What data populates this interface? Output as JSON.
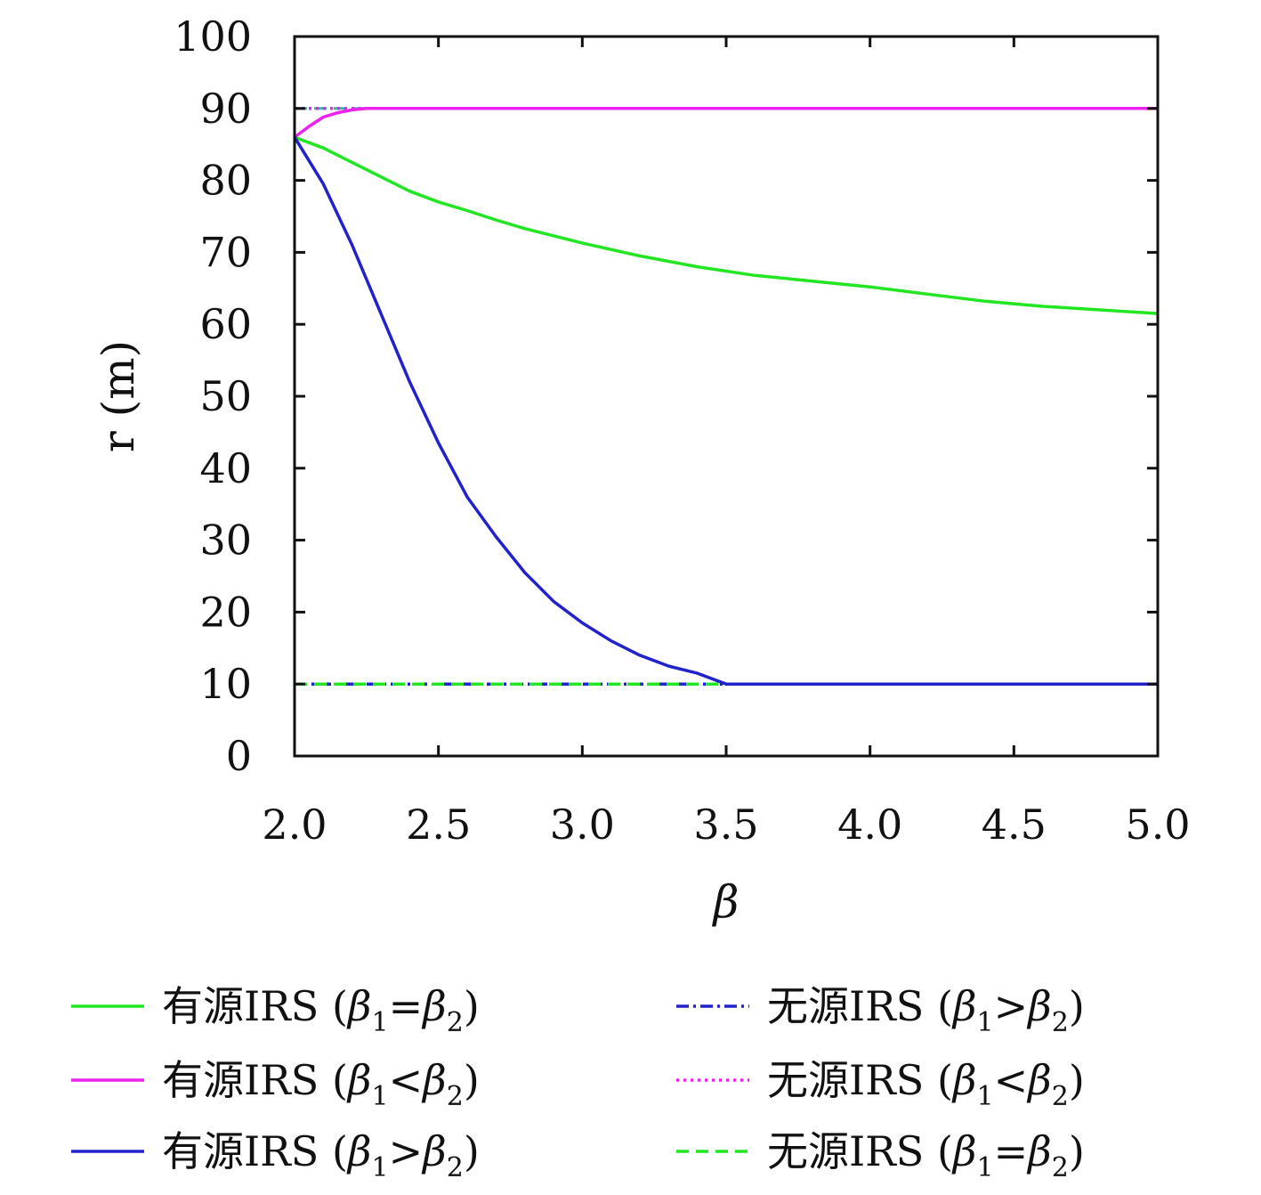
{
  "chart_data": {
    "type": "line",
    "xlabel": "β",
    "ylabel": "r (m)",
    "xlim": [
      2.0,
      5.0
    ],
    "ylim": [
      0,
      100
    ],
    "xticks": [
      "2.0",
      "2.5",
      "3.0",
      "3.5",
      "4.0",
      "4.5",
      "5.0"
    ],
    "yticks": [
      "0",
      "10",
      "20",
      "30",
      "40",
      "50",
      "60",
      "70",
      "80",
      "90",
      "100"
    ],
    "grid": false,
    "legend_position": "bottom",
    "series": [
      {
        "name": "有源IRS (β1=β2)",
        "color": "#22e622",
        "style": "solid",
        "x": [
          2.0,
          2.1,
          2.2,
          2.3,
          2.4,
          2.5,
          2.6,
          2.7,
          2.8,
          2.9,
          3.0,
          3.2,
          3.4,
          3.6,
          3.8,
          4.0,
          4.2,
          4.4,
          4.6,
          4.8,
          5.0
        ],
        "y": [
          86,
          84.5,
          82.5,
          80.5,
          78.5,
          77,
          75.8,
          74.5,
          73.3,
          72.3,
          71.3,
          69.5,
          68,
          66.8,
          66,
          65.2,
          64.2,
          63.2,
          62.5,
          62,
          61.5
        ]
      },
      {
        "name": "有源IRS (β1<β2)",
        "color": "#ee22ee",
        "style": "solid",
        "x": [
          2.0,
          2.05,
          2.1,
          2.15,
          2.2,
          2.25,
          2.3,
          2.5,
          3.0,
          3.5,
          4.0,
          4.5,
          5.0
        ],
        "y": [
          86,
          87.5,
          88.8,
          89.4,
          89.8,
          90,
          90,
          90,
          90,
          90,
          90,
          90,
          90
        ]
      },
      {
        "name": "有源IRS (β1>β2)",
        "color": "#2222cc",
        "style": "solid",
        "x": [
          2.0,
          2.1,
          2.2,
          2.3,
          2.4,
          2.5,
          2.6,
          2.7,
          2.8,
          2.9,
          3.0,
          3.1,
          3.2,
          3.3,
          3.4,
          3.5,
          4.0,
          4.5,
          5.0
        ],
        "y": [
          86,
          79.5,
          71,
          61.5,
          52,
          43.5,
          36,
          30.5,
          25.5,
          21.5,
          18.5,
          16,
          14,
          12.5,
          11.5,
          10,
          10,
          10,
          10
        ]
      },
      {
        "name": "无源IRS (β1>β2)",
        "color": "#2222cc",
        "style": "dashdot",
        "x": [
          2.0,
          5.0
        ],
        "y": [
          10,
          10
        ]
      },
      {
        "name": "无源IRS (β1<β2)",
        "color": "#ee22ee",
        "style": "dotted",
        "x": [
          2.0,
          5.0
        ],
        "y": [
          90,
          90
        ]
      },
      {
        "name": "无源IRS (β1=β2)",
        "color": "#22e622",
        "style": "dashed",
        "x": [
          2.0,
          5.0
        ],
        "y": [
          10,
          10
        ]
      }
    ],
    "overlay_lines": [
      {
        "color": "#555555",
        "style": "dashdot",
        "x": [
          2.0,
          5.0
        ],
        "y": [
          10,
          10
        ]
      },
      {
        "color": "#44aaaa",
        "style": "dashed",
        "x": [
          2.0,
          5.0
        ],
        "y": [
          90,
          90
        ]
      }
    ],
    "legend": [
      {
        "prefix": "有源IRS (",
        "a": "β",
        "a_sub": "1",
        "op": "=",
        "b": "β",
        "b_sub": "2",
        "suffix": ")"
      },
      {
        "prefix": "有源IRS (",
        "a": "β",
        "a_sub": "1",
        "op": "<",
        "b": "β",
        "b_sub": "2",
        "suffix": ")"
      },
      {
        "prefix": "有源IRS (",
        "a": "β",
        "a_sub": "1",
        "op": ">",
        "b": "β",
        "b_sub": "2",
        "suffix": ")"
      },
      {
        "prefix": "无源IRS (",
        "a": "β",
        "a_sub": "1",
        "op": ">",
        "b": "β",
        "b_sub": "2",
        "suffix": ")"
      },
      {
        "prefix": "无源IRS (",
        "a": "β",
        "a_sub": "1",
        "op": "<",
        "b": "β",
        "b_sub": "2",
        "suffix": ")"
      },
      {
        "prefix": "无源IRS (",
        "a": "β",
        "a_sub": "1",
        "op": "=",
        "b": "β",
        "b_sub": "2",
        "suffix": ")"
      }
    ]
  }
}
